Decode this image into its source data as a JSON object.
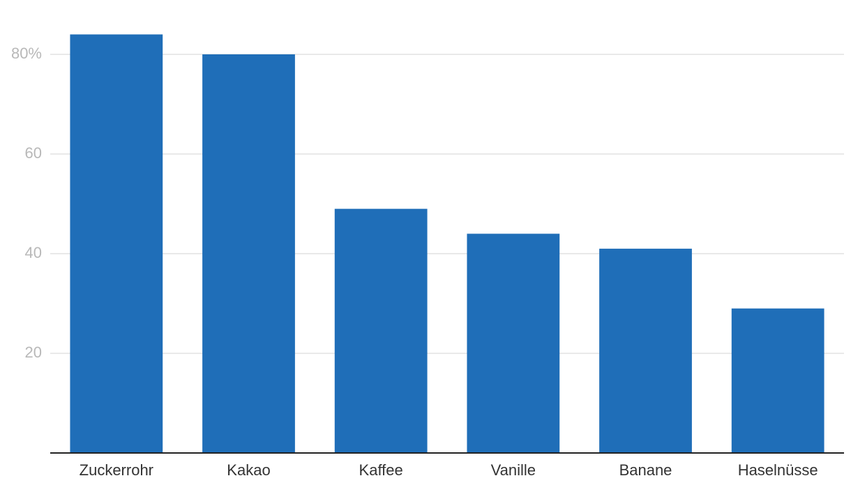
{
  "chart_data": {
    "type": "bar",
    "categories": [
      "Zuckerrohr",
      "Kakao",
      "Kaffee",
      "Vanille",
      "Banane",
      "Haselnüsse"
    ],
    "values": [
      84,
      80,
      49,
      44,
      41,
      29
    ],
    "color": "#1f6eb8",
    "ylim": [
      0,
      90
    ],
    "yticks": [
      20,
      40,
      60,
      {
        "value": 80,
        "label": "80%"
      }
    ],
    "grid": true
  }
}
